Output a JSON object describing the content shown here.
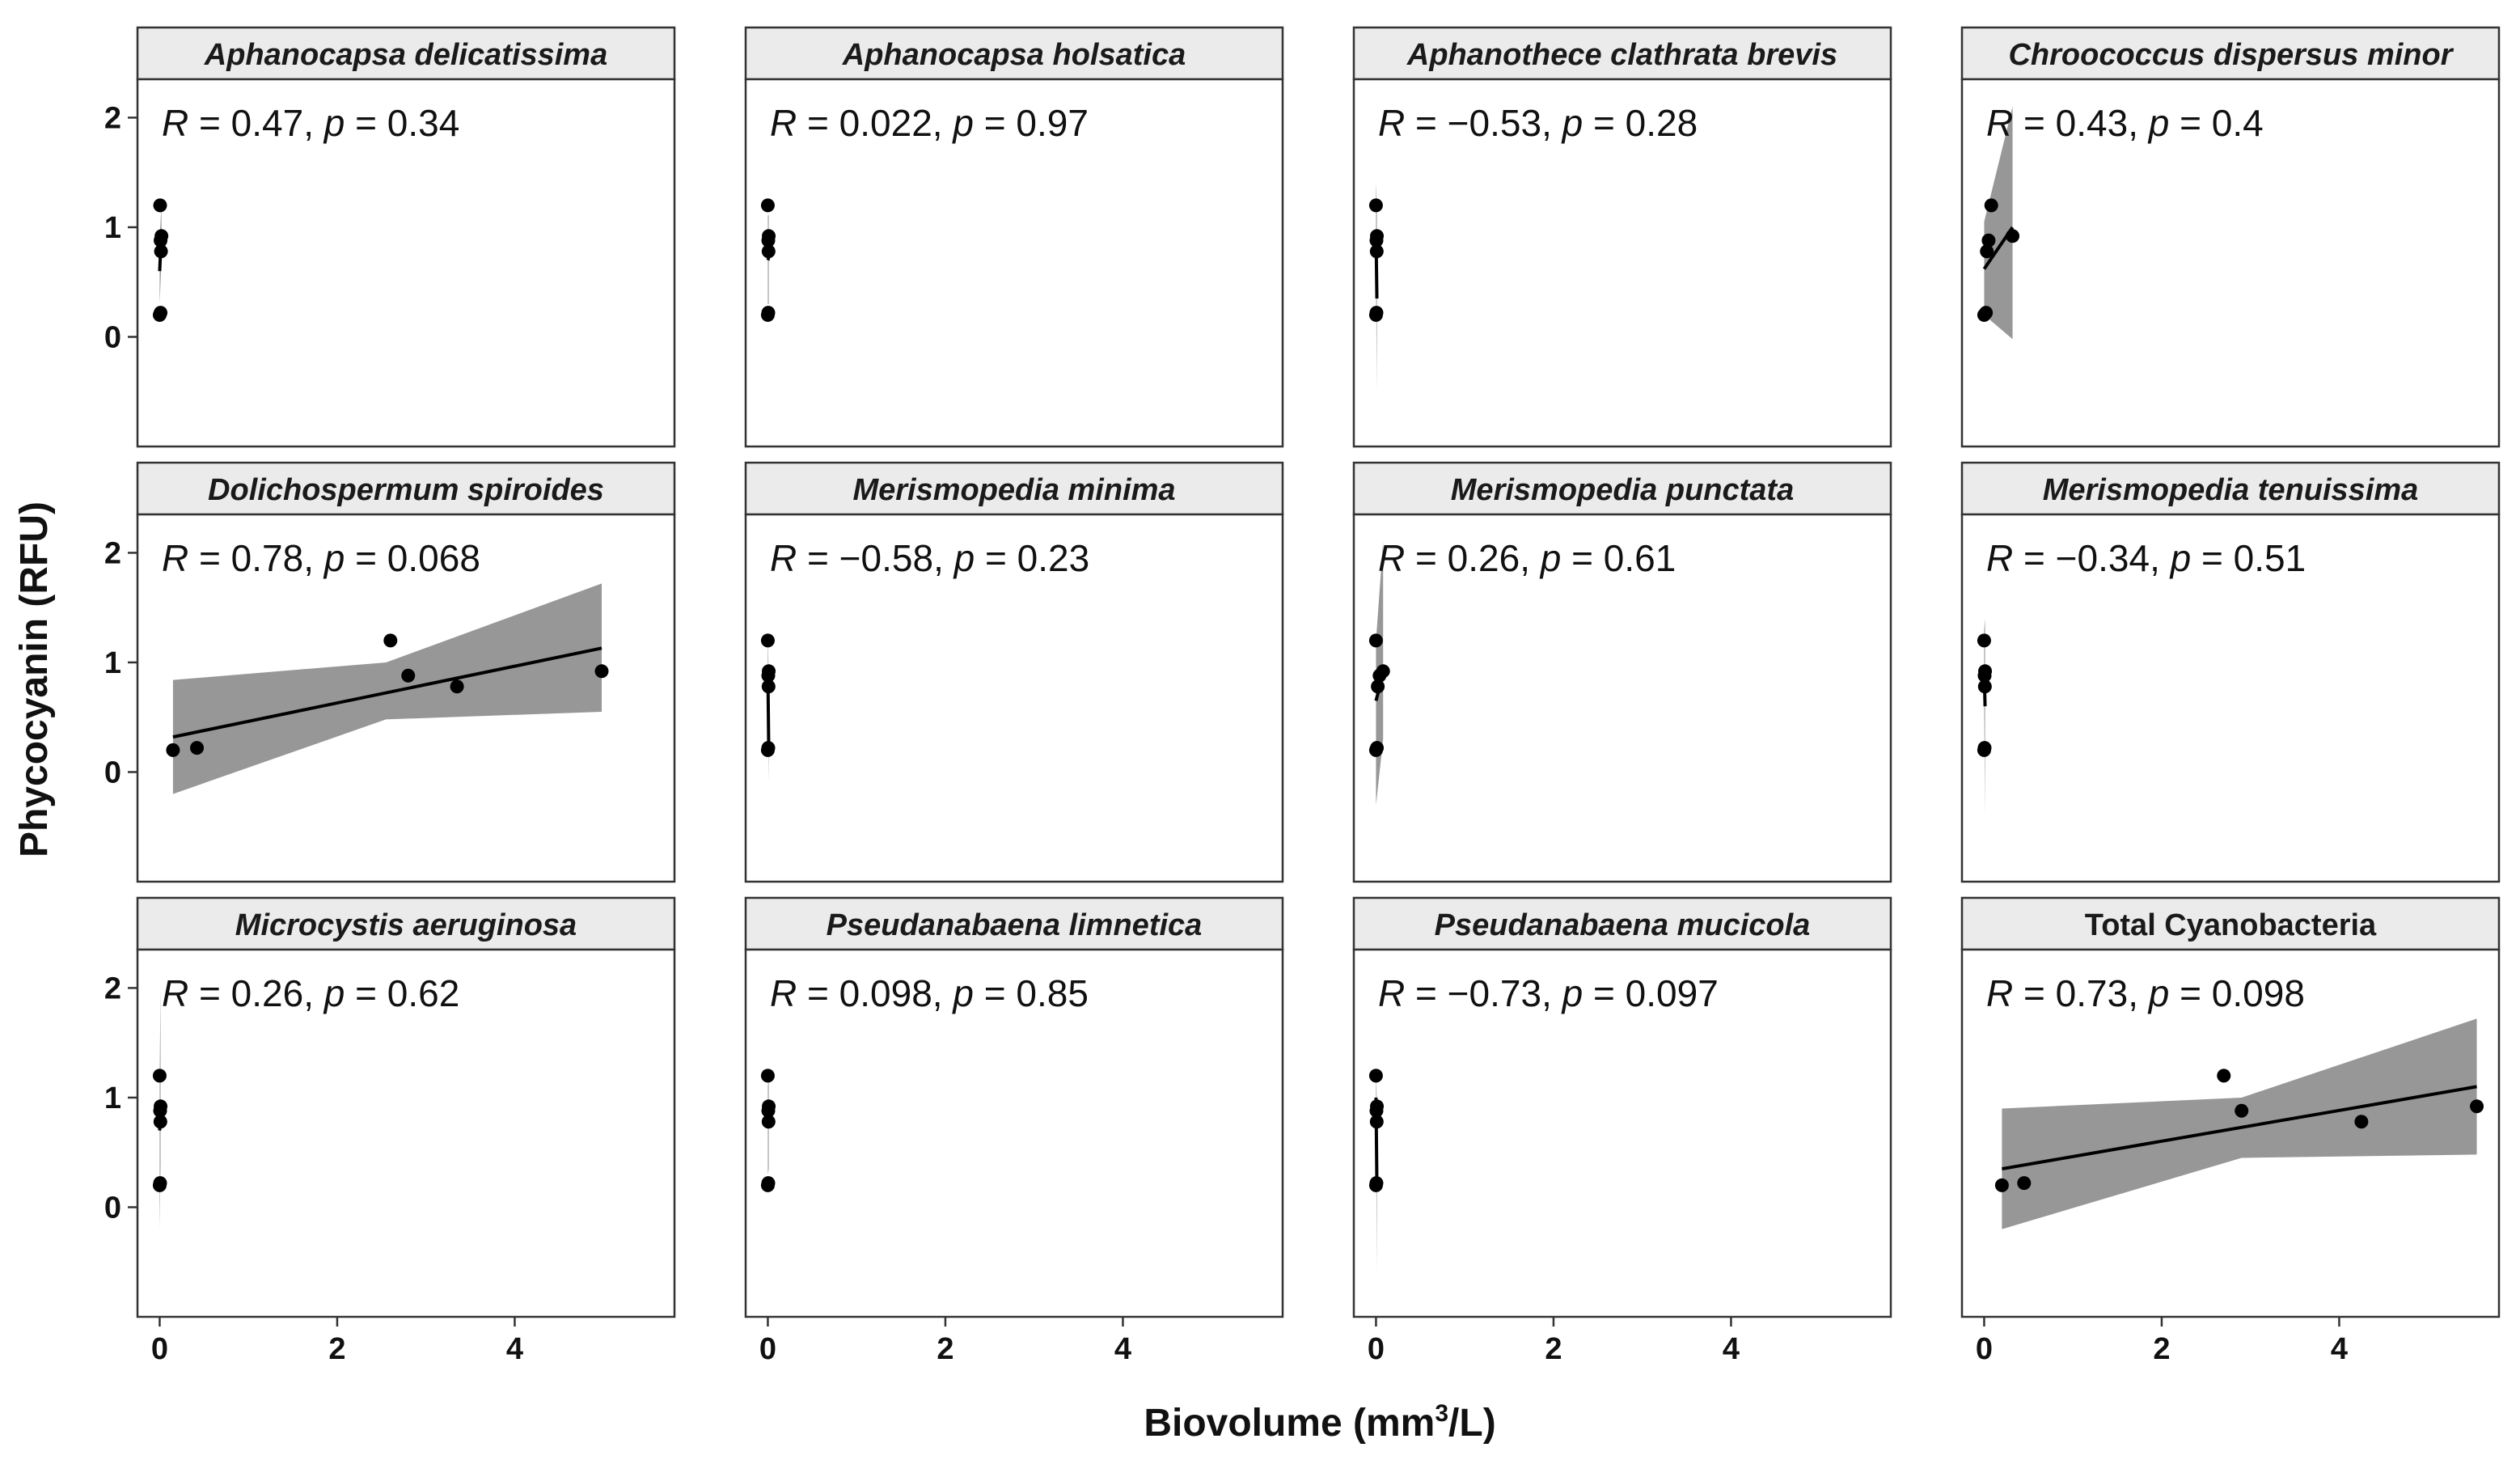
{
  "figure": {
    "xlabel_main": "Biovolume (mm",
    "xlabel_sup": "3",
    "xlabel_end": "/L)",
    "ylabel": "Phycocyanin (RFU)"
  },
  "colors": {
    "point": "#000000",
    "line": "#000000",
    "band": "#8c8c8c",
    "strip_fill": "#ebebeb",
    "panel_border": "#333333",
    "tick": "#333333"
  },
  "chart_data": {
    "type": "scatter",
    "layout": "facet-grid-3x4",
    "xlim": [
      -0.25,
      5.8
    ],
    "ylim": [
      -1.0,
      2.35
    ],
    "x_ticks": [
      0,
      2,
      4
    ],
    "x_tick_labels": [
      "0",
      "2",
      "4"
    ],
    "y_ticks": [
      0,
      1,
      2
    ],
    "y_tick_labels": [
      "0",
      "1",
      "2"
    ],
    "grid": false,
    "panels": [
      {
        "title": "Aphanocapsa delicatissima",
        "title_italic": true,
        "r_value": "0.47",
        "p_value": "0.34",
        "x": [
          0.0,
          0.01,
          0.005,
          0.02,
          0.01,
          0.015
        ],
        "y": [
          0.2,
          0.22,
          1.2,
          0.92,
          0.88,
          0.78
        ],
        "fit": {
          "x": [
            0.0,
            0.02
          ],
          "y": [
            0.6,
            0.95
          ]
        },
        "band": {
          "x": [
            0.0,
            0.02
          ],
          "lower": [
            0.3,
            0.7
          ],
          "upper": [
            0.9,
            1.2
          ]
        }
      },
      {
        "title": "Aphanocapsa holsatica",
        "title_italic": true,
        "r_value": "0.022",
        "p_value": "0.97",
        "x": [
          0.0,
          0.005,
          0.0,
          0.01,
          0.005,
          0.008
        ],
        "y": [
          0.2,
          0.22,
          1.2,
          0.92,
          0.88,
          0.78
        ],
        "fit": {
          "x": [
            0.0,
            0.01
          ],
          "y": [
            0.7,
            0.72
          ]
        },
        "band": {
          "x": [
            0.0,
            0.01
          ],
          "lower": [
            0.3,
            0.3
          ],
          "upper": [
            1.1,
            1.12
          ]
        }
      },
      {
        "title": "Aphanothece clathrata brevis",
        "title_italic": true,
        "r_value": "−0.53",
        "p_value": "0.28",
        "x": [
          0.0,
          0.005,
          0.0,
          0.01,
          0.005,
          0.008
        ],
        "y": [
          0.2,
          0.22,
          1.2,
          0.92,
          0.88,
          0.78
        ],
        "fit": {
          "x": [
            0.0,
            0.01
          ],
          "y": [
            0.95,
            0.35
          ]
        },
        "band": {
          "x": [
            0.0,
            0.01
          ],
          "lower": [
            0.5,
            -0.5
          ],
          "upper": [
            1.4,
            1.2
          ]
        }
      },
      {
        "title": "Chroococcus dispersus minor",
        "title_italic": true,
        "r_value": "0.43",
        "p_value": "0.4",
        "x": [
          0.0,
          0.02,
          0.08,
          0.32,
          0.05,
          0.03
        ],
        "y": [
          0.2,
          0.22,
          1.2,
          0.92,
          0.88,
          0.78
        ],
        "fit": {
          "x": [
            0.0,
            0.32
          ],
          "y": [
            0.62,
            1.0
          ]
        },
        "band": {
          "x": [
            0.0,
            0.32
          ],
          "lower": [
            0.2,
            -0.02
          ],
          "upper": [
            1.05,
            2.1
          ]
        }
      },
      {
        "title": "Dolichospermum spiroides",
        "title_italic": true,
        "r_value": "0.78",
        "p_value": "0.068",
        "x": [
          0.15,
          0.42,
          2.6,
          2.8,
          3.35,
          4.98
        ],
        "y": [
          0.2,
          0.22,
          1.2,
          0.88,
          0.78,
          0.92
        ],
        "fit": {
          "x": [
            0.15,
            4.98
          ],
          "y": [
            0.32,
            1.13
          ]
        },
        "band": {
          "x": [
            0.15,
            2.55,
            4.98
          ],
          "lower": [
            -0.2,
            0.48,
            0.55
          ],
          "upper": [
            0.84,
            1.0,
            1.72
          ]
        }
      },
      {
        "title": "Merismopedia minima",
        "title_italic": true,
        "r_value": "−0.58",
        "p_value": "0.23",
        "x": [
          0.0,
          0.005,
          0.0,
          0.01,
          0.005,
          0.008
        ],
        "y": [
          0.2,
          0.22,
          1.2,
          0.92,
          0.88,
          0.78
        ],
        "fit": {
          "x": [
            0.0,
            0.01
          ],
          "y": [
            0.95,
            0.22
          ]
        },
        "band": {
          "x": [
            0.0,
            0.01
          ],
          "lower": [
            0.6,
            -0.1
          ],
          "upper": [
            1.3,
            0.8
          ]
        }
      },
      {
        "title": "Merismopedia punctata",
        "title_italic": true,
        "r_value": "0.26",
        "p_value": "0.61",
        "x": [
          0.0,
          0.01,
          0.0,
          0.08,
          0.04,
          0.02
        ],
        "y": [
          0.2,
          0.22,
          1.2,
          0.92,
          0.88,
          0.78
        ],
        "fit": {
          "x": [
            0.0,
            0.08
          ],
          "y": [
            0.65,
            0.9
          ]
        },
        "band": {
          "x": [
            0.0,
            0.08
          ],
          "lower": [
            -0.3,
            0.3
          ],
          "upper": [
            1.2,
            2.1
          ]
        }
      },
      {
        "title": "Merismopedia tenuissima",
        "title_italic": true,
        "r_value": "−0.34",
        "p_value": "0.51",
        "x": [
          0.0,
          0.005,
          0.0,
          0.01,
          0.005,
          0.008
        ],
        "y": [
          0.2,
          0.22,
          1.2,
          0.92,
          0.88,
          0.78
        ],
        "fit": {
          "x": [
            0.0,
            0.01
          ],
          "y": [
            0.95,
            0.6
          ]
        },
        "band": {
          "x": [
            0.0,
            0.01
          ],
          "lower": [
            0.6,
            -0.4
          ],
          "upper": [
            1.3,
            1.4
          ]
        }
      },
      {
        "title": "Microcystis aeruginosa",
        "title_italic": true,
        "r_value": "0.26",
        "p_value": "0.62",
        "x": [
          0.0,
          0.005,
          0.0,
          0.01,
          0.005,
          0.008
        ],
        "y": [
          0.2,
          0.22,
          1.2,
          0.92,
          0.88,
          0.78
        ],
        "fit": {
          "x": [
            0.0,
            0.01
          ],
          "y": [
            0.7,
            0.9
          ]
        },
        "band": {
          "x": [
            0.0,
            0.01
          ],
          "lower": [
            -0.2,
            0.4
          ],
          "upper": [
            1.2,
            2.0
          ]
        }
      },
      {
        "title": "Pseudanabaena limnetica",
        "title_italic": true,
        "r_value": "0.098",
        "p_value": "0.85",
        "x": [
          0.0,
          0.005,
          0.0,
          0.01,
          0.005,
          0.008
        ],
        "y": [
          0.2,
          0.22,
          1.2,
          0.92,
          0.88,
          0.78
        ],
        "fit": {
          "x": [
            0.0,
            0.01
          ],
          "y": [
            0.72,
            0.78
          ]
        },
        "band": {
          "x": [
            0.0,
            0.01
          ],
          "lower": [
            0.3,
            0.35
          ],
          "upper": [
            1.1,
            1.2
          ]
        }
      },
      {
        "title": "Pseudanabaena mucicola",
        "title_italic": true,
        "r_value": "−0.73",
        "p_value": "0.097",
        "x": [
          0.0,
          0.005,
          0.0,
          0.01,
          0.005,
          0.008
        ],
        "y": [
          0.2,
          0.22,
          1.2,
          0.92,
          0.88,
          0.78
        ],
        "fit": {
          "x": [
            0.0,
            0.01
          ],
          "y": [
            1.0,
            0.2
          ]
        },
        "band": {
          "x": [
            0.0,
            0.01
          ],
          "lower": [
            0.7,
            -0.6
          ],
          "upper": [
            1.3,
            0.9
          ]
        }
      },
      {
        "title": "Total Cyanobacteria",
        "title_italic": false,
        "r_value": "0.73",
        "p_value": "0.098",
        "x": [
          0.2,
          0.45,
          2.7,
          2.9,
          4.25,
          5.55
        ],
        "y": [
          0.2,
          0.22,
          1.2,
          0.88,
          0.78,
          0.92
        ],
        "fit": {
          "x": [
            0.2,
            5.55
          ],
          "y": [
            0.35,
            1.1
          ]
        },
        "band": {
          "x": [
            0.2,
            2.9,
            5.55
          ],
          "lower": [
            -0.2,
            0.45,
            0.48
          ],
          "upper": [
            0.9,
            1.0,
            1.72
          ]
        }
      }
    ]
  }
}
